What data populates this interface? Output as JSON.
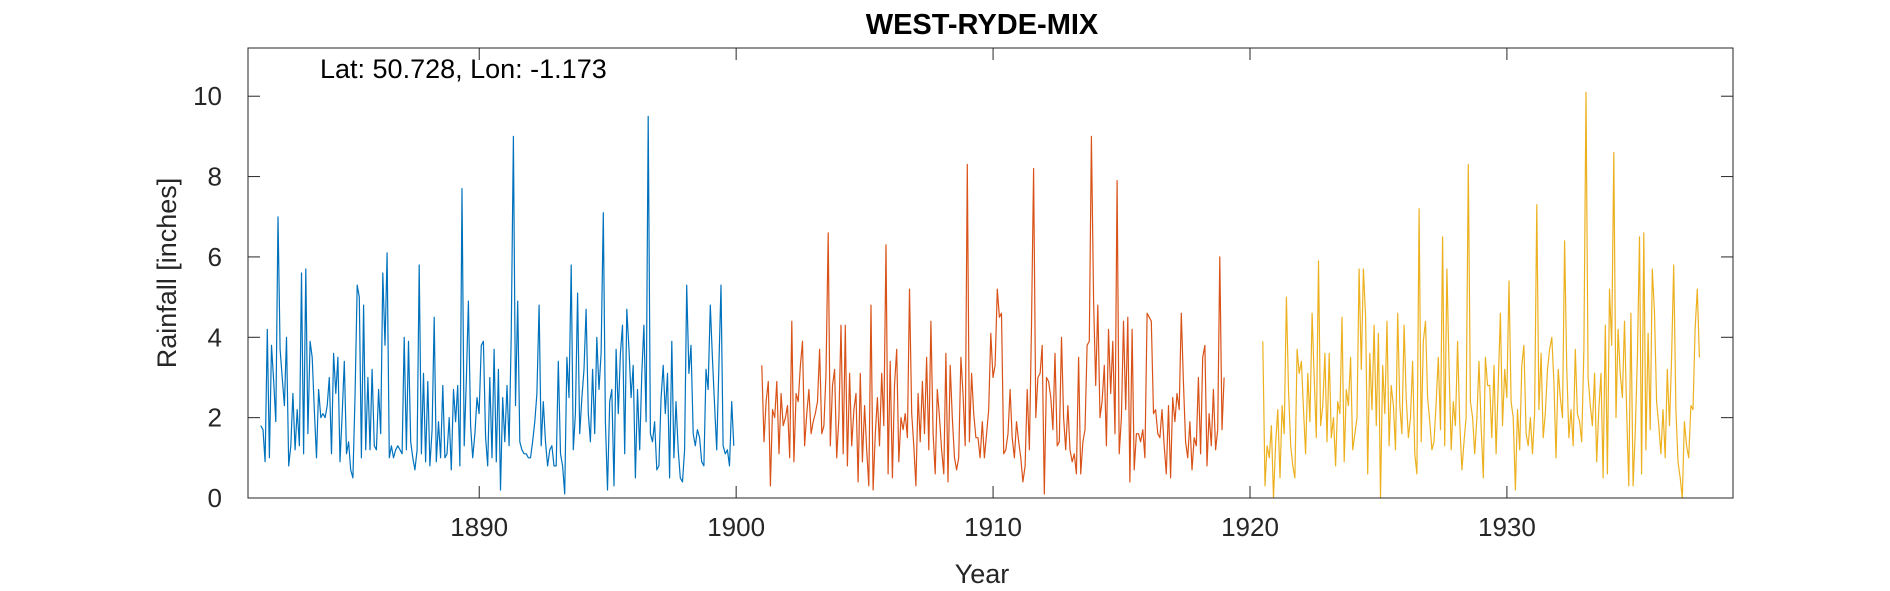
{
  "chart_data": {
    "type": "line",
    "title": "WEST-RYDE-MIX",
    "xlabel": "Year",
    "ylabel": "Rainfall [inches]",
    "annotation": "Lat: 50.728, Lon: -1.173",
    "xlim": [
      1881.0,
      1938.8
    ],
    "ylim": [
      0,
      11.2
    ],
    "xticks": [
      1890,
      1900,
      1910,
      1920,
      1930
    ],
    "yticks": [
      0,
      2,
      4,
      6,
      8,
      10
    ],
    "grid": false,
    "box": true,
    "series": [
      {
        "color": "#0072BD",
        "x_start": 1881.5,
        "x_step": 0.0833,
        "values": [
          1.8,
          1.7,
          0.9,
          4.2,
          1.0,
          3.8,
          2.9,
          1.9,
          7.0,
          3.7,
          3.0,
          2.3,
          4.0,
          0.8,
          1.3,
          2.6,
          1.2,
          2.2,
          1.3,
          5.6,
          1.1,
          5.7,
          1.6,
          3.9,
          3.5,
          2.2,
          1.0,
          2.7,
          2.0,
          2.1,
          2.0,
          2.3,
          3.0,
          1.1,
          3.6,
          2.6,
          3.5,
          0.9,
          2.1,
          3.4,
          1.1,
          1.4,
          0.7,
          0.5,
          2.5,
          5.3,
          5.0,
          1.0,
          4.8,
          1.2,
          3.0,
          1.2,
          3.2,
          1.3,
          1.2,
          2.7,
          1.6,
          5.6,
          3.8,
          6.1,
          1.0,
          1.3,
          1.0,
          1.2,
          1.3,
          1.2,
          1.1,
          4.0,
          1.2,
          3.9,
          1.4,
          1.0,
          0.7,
          1.2,
          5.8,
          1.1,
          3.1,
          0.9,
          2.9,
          0.8,
          1.7,
          4.5,
          0.9,
          1.9,
          1.0,
          2.8,
          1.0,
          1.1,
          2.0,
          0.7,
          2.7,
          1.9,
          2.8,
          0.8,
          7.7,
          1.3,
          2.9,
          4.9,
          1.8,
          1.0,
          1.6,
          2.5,
          2.1,
          3.8,
          3.9,
          1.5,
          0.8,
          3.0,
          1.0,
          3.7,
          0.9,
          3.2,
          0.2,
          2.5,
          1.4,
          2.8,
          1.3,
          4.0,
          9.0,
          2.3,
          4.9,
          1.4,
          1.2,
          1.1,
          1.1,
          1.0,
          1.0,
          1.4,
          1.9,
          2.6,
          4.8,
          1.3,
          2.4,
          1.4,
          0.8,
          1.2,
          1.3,
          0.8,
          0.8,
          3.4,
          1.1,
          0.8,
          0.1,
          3.5,
          2.5,
          5.8,
          1.2,
          2.1,
          5.1,
          1.6,
          2.5,
          3.2,
          4.7,
          2.1,
          1.4,
          3.2,
          1.6,
          4.0,
          2.7,
          3.6,
          7.1,
          1.9,
          0.2,
          2.4,
          2.7,
          0.3,
          3.7,
          2.1,
          3.6,
          4.3,
          1.1,
          4.7,
          3.7,
          2.5,
          3.3,
          0.5,
          2.7,
          1.2,
          3.1,
          4.3,
          1.9,
          9.5,
          1.6,
          1.4,
          1.9,
          0.7,
          0.8,
          2.5,
          3.3,
          2.1,
          3.1,
          0.5,
          3.9,
          1.0,
          2.4,
          1.2,
          0.5,
          0.4,
          1.2,
          5.3,
          3.1,
          3.8,
          1.6,
          1.3,
          1.7,
          1.5,
          0.9,
          0.8,
          3.2,
          2.7,
          4.8,
          3.5,
          2.3,
          1.2,
          3.2,
          5.3,
          1.3,
          1.1,
          1.2,
          0.8,
          2.4,
          1.3
        ]
      },
      {
        "color": "#D95319",
        "x_start": 1901.0,
        "x_step": 0.0833,
        "values": [
          3.3,
          1.4,
          2.4,
          2.9,
          0.3,
          2.2,
          2.0,
          2.9,
          1.1,
          2.6,
          1.8,
          2.0,
          2.3,
          1.0,
          4.4,
          0.9,
          2.6,
          2.4,
          3.3,
          3.9,
          1.3,
          2.1,
          2.7,
          1.6,
          1.9,
          2.1,
          2.4,
          3.7,
          1.6,
          1.8,
          3.1,
          6.6,
          1.3,
          2.8,
          3.2,
          1.0,
          2.0,
          4.3,
          1.1,
          4.3,
          0.8,
          3.1,
          1.3,
          2.2,
          2.6,
          0.4,
          3.1,
          0.9,
          2.3,
          1.2,
          0.3,
          4.8,
          0.2,
          1.6,
          2.5,
          1.3,
          3.1,
          1.8,
          6.3,
          0.6,
          3.4,
          0.5,
          2.8,
          3.7,
          0.9,
          2.0,
          1.7,
          2.1,
          1.5,
          5.2,
          2.1,
          1.3,
          0.3,
          2.6,
          1.4,
          2.9,
          1.6,
          3.5,
          1.2,
          4.4,
          1.6,
          0.6,
          2.7,
          2.0,
          1.2,
          0.6,
          3.6,
          0.4,
          3.3,
          2.0,
          1.0,
          0.7,
          1.0,
          3.5,
          2.6,
          1.3,
          8.3,
          1.4,
          3.1,
          2.1,
          1.5,
          1.5,
          1.0,
          1.9,
          1.0,
          1.6,
          2.2,
          4.1,
          3.0,
          3.3,
          5.2,
          4.5,
          4.6,
          1.1,
          1.2,
          1.6,
          2.7,
          1.5,
          1.0,
          1.9,
          1.4,
          1.0,
          0.4,
          0.8,
          2.7,
          1.2,
          4.3,
          8.2,
          2.0,
          3.0,
          3.1,
          3.8,
          0.1,
          3.0,
          2.9,
          2.5,
          1.7,
          3.6,
          1.3,
          1.4,
          4.0,
          2.0,
          1.2,
          2.3,
          1.2,
          0.9,
          1.1,
          0.6,
          3.5,
          0.6,
          1.4,
          1.7,
          3.8,
          3.9,
          9.0,
          4.9,
          2.8,
          4.8,
          2.0,
          2.4,
          3.3,
          1.3,
          4.2,
          2.6,
          3.9,
          1.6,
          7.9,
          1.1,
          2.0,
          4.4,
          2.2,
          4.5,
          0.4,
          4.2,
          0.7,
          1.6,
          1.6,
          1.4,
          1.7,
          1.0,
          4.6,
          4.5,
          4.4,
          2.1,
          2.2,
          1.6,
          1.5,
          2.2,
          1.3,
          0.6,
          2.3,
          0.5,
          2.5,
          1.9,
          2.6,
          2.2,
          4.6,
          2.9,
          1.4,
          1.0,
          1.9,
          0.7,
          1.5,
          1.3,
          3.0,
          1.1,
          3.5,
          3.8,
          0.8,
          2.1,
          1.3,
          2.7,
          1.2,
          1.7,
          6.0,
          1.7,
          3.0
        ]
      },
      {
        "color": "#EDB120",
        "x_start": 1920.5,
        "x_step": 0.0833,
        "values": [
          3.9,
          0.3,
          1.3,
          1.0,
          1.8,
          0.0,
          1.4,
          2.2,
          0.5,
          2.3,
          1.6,
          5.0,
          2.7,
          1.3,
          0.8,
          0.5,
          3.7,
          3.1,
          3.4,
          2.2,
          1.1,
          3.1,
          1.9,
          4.6,
          3.0,
          1.5,
          5.9,
          1.8,
          2.3,
          3.6,
          1.4,
          3.6,
          1.5,
          2.0,
          0.8,
          2.4,
          2.1,
          4.5,
          0.9,
          2.7,
          2.3,
          3.5,
          1.2,
          1.6,
          2.0,
          5.7,
          3.2,
          5.7,
          4.5,
          0.6,
          3.6,
          2.2,
          4.3,
          1.8,
          4.1,
          0.0,
          3.3,
          2.1,
          4.4,
          1.3,
          2.8,
          2.3,
          1.2,
          4.6,
          2.3,
          1.6,
          4.3,
          2.5,
          1.5,
          2.0,
          3.4,
          1.1,
          0.6,
          7.2,
          1.4,
          3.9,
          4.4,
          2.5,
          1.9,
          1.2,
          1.4,
          2.4,
          3.5,
          1.7,
          6.5,
          1.3,
          5.7,
          3.3,
          1.2,
          2.4,
          1.8,
          3.9,
          1.9,
          0.7,
          1.4,
          2.0,
          8.3,
          2.4,
          2.0,
          1.1,
          2.0,
          3.4,
          1.8,
          0.5,
          3.5,
          2.8,
          2.8,
          1.5,
          3.3,
          1.1,
          2.9,
          4.6,
          1.8,
          3.2,
          2.5,
          5.4,
          2.4,
          2.0,
          0.2,
          2.2,
          1.2,
          3.3,
          3.8,
          1.6,
          1.3,
          2.0,
          1.1,
          2.1,
          7.3,
          2.2,
          3.6,
          1.5,
          2.1,
          3.2,
          3.7,
          4.0,
          2.9,
          1.0,
          3.2,
          2.5,
          2.0,
          6.4,
          3.3,
          1.5,
          2.2,
          1.3,
          3.7,
          2.1,
          1.9,
          1.4,
          3.7,
          10.1,
          3.0,
          2.3,
          1.8,
          3.1,
          0.9,
          2.2,
          3.1,
          0.5,
          4.3,
          0.6,
          5.2,
          3.8,
          8.6,
          2.0,
          4.2,
          3.1,
          2.5,
          4.4,
          2.1,
          0.3,
          4.6,
          0.3,
          1.6,
          3.5,
          6.5,
          0.6,
          6.6,
          1.2,
          4.1,
          1.7,
          5.7,
          4.6,
          2.4,
          1.8,
          1.1,
          2.2,
          1.0,
          3.2,
          1.8,
          3.5,
          5.8,
          2.2,
          0.9,
          0.5,
          0.0,
          1.9,
          1.3,
          1.0,
          2.3,
          2.2,
          4.2,
          5.2,
          3.5
        ]
      }
    ]
  }
}
